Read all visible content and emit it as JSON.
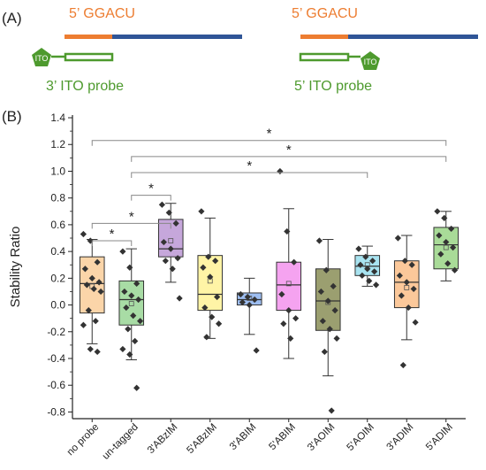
{
  "panel_a": {
    "label": "(A)",
    "left": {
      "sequence_label": "5’ GGACU",
      "tag": "ITO",
      "probe_label": "3’ ITO probe"
    },
    "right": {
      "sequence_label": "5’ GGACU",
      "tag": "ITO",
      "probe_label": "5’ ITO probe"
    }
  },
  "colors": {
    "orange": "#ED7D31",
    "blue": "#2F5597",
    "green": "#4E9A2E",
    "label_orange": "#ED7D31",
    "label_green": "#4E9A2E"
  },
  "chart_data": {
    "type": "box",
    "panel_label": "(B)",
    "ylabel": "Stability Ratio",
    "ylim": [
      -0.85,
      1.42
    ],
    "yticks": [
      "-0.8",
      "-0.6",
      "-0.4",
      "-0.2",
      "0.0",
      "0.2",
      "0.4",
      "0.6",
      "0.8",
      "1.0",
      "1.2",
      "1.4"
    ],
    "grid": false,
    "categories": [
      "no probe",
      "un-tagged",
      "3'ABzIM",
      "5'ABzIM",
      "3'ABIM",
      "5'ABIM",
      "3'AOIM",
      "5'AOIM",
      "3'ADIM",
      "5'ADIM"
    ],
    "boxes": [
      {
        "q1": -0.06,
        "median": 0.16,
        "q3": 0.36,
        "mean": 0.14,
        "whisker_low": -0.29,
        "whisker_high": 0.49,
        "color": "#FBD5A9",
        "points": [
          0.53,
          0.48,
          0.32,
          0.27,
          0.2,
          0.17,
          0.15,
          0.12,
          0.1,
          -0.04,
          -0.12,
          -0.15,
          -0.33,
          -0.35
        ]
      },
      {
        "q1": -0.15,
        "median": 0.04,
        "q3": 0.18,
        "mean": 0.01,
        "whisker_low": -0.41,
        "whisker_high": 0.42,
        "color": "#A8DCA5",
        "points": [
          0.4,
          0.28,
          0.16,
          0.1,
          0.07,
          0.04,
          -0.02,
          -0.08,
          -0.12,
          -0.18,
          -0.27,
          -0.33,
          -0.37,
          -0.62
        ]
      },
      {
        "q1": 0.36,
        "median": 0.42,
        "q3": 0.64,
        "mean": 0.48,
        "whisker_low": 0.17,
        "whisker_high": 0.76,
        "color": "#C6A7DB",
        "points": [
          0.75,
          0.69,
          0.61,
          0.47,
          0.42,
          0.35,
          0.33,
          0.27,
          0.05
        ]
      },
      {
        "q1": -0.04,
        "median": 0.08,
        "q3": 0.37,
        "mean": 0.18,
        "whisker_low": -0.25,
        "whisker_high": 0.65,
        "color": "#FFF4A6",
        "points": [
          0.7,
          0.36,
          0.33,
          0.28,
          0.21,
          0.06,
          -0.02,
          -0.09,
          -0.14,
          -0.24
        ]
      },
      {
        "q1": 0.0,
        "median": 0.04,
        "q3": 0.09,
        "mean": 0.05,
        "whisker_low": -0.22,
        "whisker_high": 0.2,
        "color": "#9DBDF0",
        "points": [
          0.08,
          0.06,
          0.04,
          0.02,
          0.0,
          -0.34
        ]
      },
      {
        "q1": -0.04,
        "median": 0.15,
        "q3": 0.32,
        "mean": 0.16,
        "whisker_low": -0.4,
        "whisker_high": 0.72,
        "color": "#F5A3F0",
        "points": [
          1.0,
          0.55,
          0.32,
          0.08,
          -0.04,
          -0.1,
          -0.14,
          -0.25
        ]
      },
      {
        "q1": -0.19,
        "median": 0.03,
        "q3": 0.27,
        "mean": 0.02,
        "whisker_low": -0.53,
        "whisker_high": 0.49,
        "color": "#9B9F70",
        "points": [
          0.48,
          0.26,
          0.14,
          0.1,
          0.03,
          -0.04,
          -0.12,
          -0.18,
          -0.25,
          -0.35,
          -0.79
        ]
      },
      {
        "q1": 0.22,
        "median": 0.29,
        "q3": 0.37,
        "mean": 0.3,
        "whisker_low": 0.14,
        "whisker_high": 0.44,
        "color": "#A8E3F0",
        "points": [
          0.42,
          0.36,
          0.33,
          0.3,
          0.27,
          0.25,
          0.22,
          0.18,
          0.15
        ]
      },
      {
        "q1": -0.02,
        "median": 0.17,
        "q3": 0.33,
        "mean": 0.13,
        "whisker_low": -0.26,
        "whisker_high": 0.52,
        "color": "#FBC89A",
        "points": [
          0.5,
          0.33,
          0.3,
          0.22,
          0.17,
          0.12,
          0.07,
          -0.02,
          -0.13,
          -0.45
        ]
      },
      {
        "q1": 0.27,
        "median": 0.45,
        "q3": 0.58,
        "mean": 0.43,
        "whisker_low": 0.18,
        "whisker_high": 0.7,
        "color": "#A9DB98",
        "points": [
          0.7,
          0.65,
          0.57,
          0.52,
          0.47,
          0.43,
          0.38,
          0.31,
          0.26
        ]
      }
    ],
    "significance": [
      {
        "from": 0,
        "to": 1,
        "y": 0.48,
        "label": "*"
      },
      {
        "from": 0,
        "to": 2,
        "y": 0.61,
        "label": "*"
      },
      {
        "from": 1,
        "to": 2,
        "y": 0.82,
        "label": "*"
      },
      {
        "from": 1,
        "to": 7,
        "y": 0.99,
        "label": "*"
      },
      {
        "from": 1,
        "to": 9,
        "y": 1.11,
        "label": "*"
      },
      {
        "from": 0,
        "to": 9,
        "y": 1.23,
        "label": "*"
      }
    ]
  }
}
